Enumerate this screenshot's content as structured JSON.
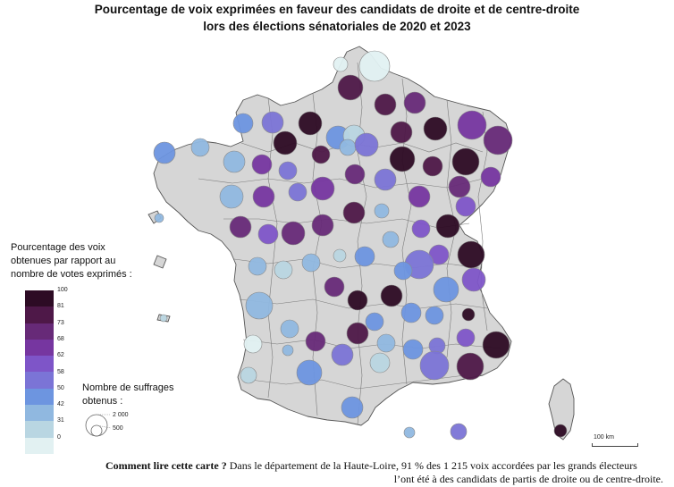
{
  "title": {
    "line1": "Pourcentage de voix exprimées en faveur des candidats de droite et de centre-droite",
    "line2": "lors des élections sénatoriales de 2020 et 2023"
  },
  "legend": {
    "color_title": "Pourcentage des voix obtenues par rapport au nombre de votes exprimés :",
    "ticks": [
      "100",
      "81",
      "73",
      "68",
      "62",
      "58",
      "50",
      "42",
      "31",
      "0"
    ],
    "colors": [
      "#2d0b24",
      "#4e1848",
      "#672a78",
      "#7636a0",
      "#7e55c8",
      "#7b74d6",
      "#6d95e0",
      "#90b8e0",
      "#b9d6e2",
      "#e2f1f2"
    ],
    "size_title": "Nombre de suffrages obtenus :",
    "size_values": [
      "2 000",
      "500"
    ]
  },
  "scale": {
    "label": "100 km",
    "km": 100
  },
  "caption": {
    "bold": "Comment lire cette carte ?",
    "line1": " Dans le département de la Haute-Loire, 91 % des 1 215 voix accordées par les grands électeurs",
    "line2": "l’ont été à des candidats de partis de droite ou de centre-droite."
  },
  "map": {
    "land_color": "#d6d6d6",
    "border_color": "#555555",
    "example_department": {
      "name": "Haute-Loire",
      "percent": 91,
      "votes": 1215
    }
  }
}
